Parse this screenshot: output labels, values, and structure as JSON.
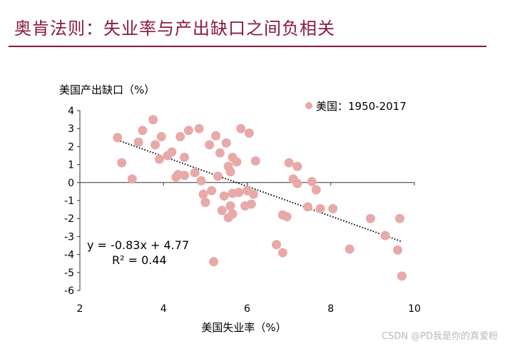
{
  "page_title": "奥肯法则：失业率与产出缺口之间负相关",
  "watermark": "CSDN @PD我是你的真爱粉",
  "chart_data": {
    "type": "scatter",
    "title": "奥肯法则：失业率与产出缺口之间负相关",
    "xlabel": "美国失业率（%）",
    "ylabel": "美国产出缺口（%）",
    "xlim": [
      2,
      10
    ],
    "ylim": [
      -6,
      4
    ],
    "xticks": [
      2,
      4,
      6,
      8,
      10
    ],
    "yticks": [
      4,
      3,
      2,
      1,
      0,
      -1,
      -2,
      -3,
      -4,
      -5,
      -6
    ],
    "legend": "美国：1950-2017",
    "legend_position": "top-right",
    "marker_color": "#E8A9A9",
    "trendline_color": "#000000",
    "equation": "y = -0.83x + 4.77",
    "r_squared": "R² = 0.44",
    "trendline": {
      "slope": -0.83,
      "intercept": 4.77,
      "x_start": 2.9,
      "x_end": 9.7
    },
    "points": [
      [
        2.9,
        2.5
      ],
      [
        3.0,
        1.1
      ],
      [
        3.25,
        0.2
      ],
      [
        3.4,
        2.25
      ],
      [
        3.5,
        2.9
      ],
      [
        3.75,
        3.5
      ],
      [
        3.8,
        2.1
      ],
      [
        3.9,
        1.3
      ],
      [
        3.95,
        2.55
      ],
      [
        4.1,
        1.5
      ],
      [
        4.2,
        1.7
      ],
      [
        4.3,
        0.3
      ],
      [
        4.35,
        0.45
      ],
      [
        4.4,
        2.55
      ],
      [
        4.5,
        1.4
      ],
      [
        4.5,
        0.4
      ],
      [
        4.6,
        2.9
      ],
      [
        4.75,
        0.55
      ],
      [
        4.85,
        3.0
      ],
      [
        4.9,
        0.1
      ],
      [
        4.95,
        -0.65
      ],
      [
        5.0,
        -1.1
      ],
      [
        5.1,
        2.1
      ],
      [
        5.15,
        -0.45
      ],
      [
        5.2,
        -4.4
      ],
      [
        5.25,
        2.6
      ],
      [
        5.3,
        0.35
      ],
      [
        5.35,
        1.65
      ],
      [
        5.4,
        -1.55
      ],
      [
        5.45,
        -0.75
      ],
      [
        5.5,
        2.2
      ],
      [
        5.55,
        0.9
      ],
      [
        5.55,
        -1.95
      ],
      [
        5.6,
        0.6
      ],
      [
        5.6,
        -1.3
      ],
      [
        5.65,
        1.4
      ],
      [
        5.65,
        -0.6
      ],
      [
        5.65,
        -1.75
      ],
      [
        5.75,
        1.15
      ],
      [
        5.8,
        -0.55
      ],
      [
        5.85,
        3.0
      ],
      [
        5.95,
        -1.3
      ],
      [
        6.0,
        -0.45
      ],
      [
        6.05,
        2.75
      ],
      [
        6.1,
        -1.2
      ],
      [
        6.15,
        -0.65
      ],
      [
        6.2,
        1.2
      ],
      [
        6.7,
        -3.45
      ],
      [
        6.85,
        -3.9
      ],
      [
        6.85,
        -1.8
      ],
      [
        6.95,
        -1.9
      ],
      [
        7.0,
        1.1
      ],
      [
        7.1,
        0.2
      ],
      [
        7.2,
        0.9
      ],
      [
        7.2,
        -0.05
      ],
      [
        7.45,
        -1.35
      ],
      [
        7.55,
        0.05
      ],
      [
        7.65,
        -0.4
      ],
      [
        7.75,
        -1.45
      ],
      [
        8.05,
        -1.45
      ],
      [
        8.45,
        -3.7
      ],
      [
        8.95,
        -2.0
      ],
      [
        9.3,
        -2.95
      ],
      [
        9.6,
        -3.75
      ],
      [
        9.65,
        -2.0
      ],
      [
        9.7,
        -5.2
      ]
    ]
  }
}
